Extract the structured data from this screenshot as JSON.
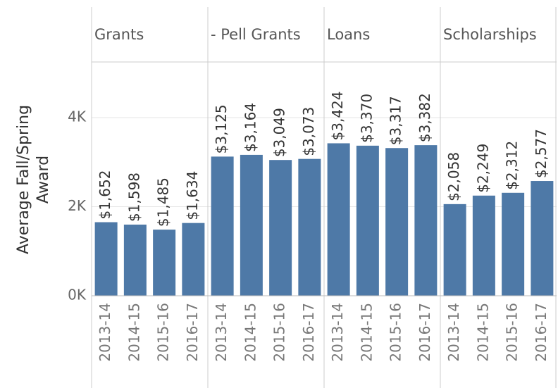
{
  "chart_data": {
    "type": "bar",
    "y_label": "Average Fall/Spring Award",
    "color": "#4e79a7",
    "ylim": [
      0,
      5250
    ],
    "yticks": [
      {
        "value": 0,
        "label": "0K"
      },
      {
        "value": 2000,
        "label": "2K"
      },
      {
        "value": 4000,
        "label": "4K"
      }
    ],
    "grid": true,
    "facets": [
      {
        "name": "Grants",
        "categories": [
          "2013-14",
          "2014-15",
          "2015-16",
          "2016-17"
        ],
        "values": [
          1652,
          1598,
          1485,
          1634
        ],
        "value_labels": [
          "$1,652",
          "$1,598",
          "$1,485",
          "$1,634"
        ]
      },
      {
        "name": "- Pell Grants",
        "categories": [
          "2013-14",
          "2014-15",
          "2015-16",
          "2016-17"
        ],
        "values": [
          3125,
          3164,
          3049,
          3073
        ],
        "value_labels": [
          "$3,125",
          "$3,164",
          "$3,049",
          "$3,073"
        ]
      },
      {
        "name": "Loans",
        "categories": [
          "2013-14",
          "2014-15",
          "2015-16",
          "2016-17"
        ],
        "values": [
          3424,
          3370,
          3317,
          3382
        ],
        "value_labels": [
          "$3,424",
          "$3,370",
          "$3,317",
          "$3,382"
        ]
      },
      {
        "name": "Scholarships",
        "categories": [
          "2013-14",
          "2014-15",
          "2015-16",
          "2016-17"
        ],
        "values": [
          2058,
          2249,
          2312,
          2577
        ],
        "value_labels": [
          "$2,058",
          "$2,249",
          "$2,312",
          "$2,577"
        ]
      }
    ]
  }
}
